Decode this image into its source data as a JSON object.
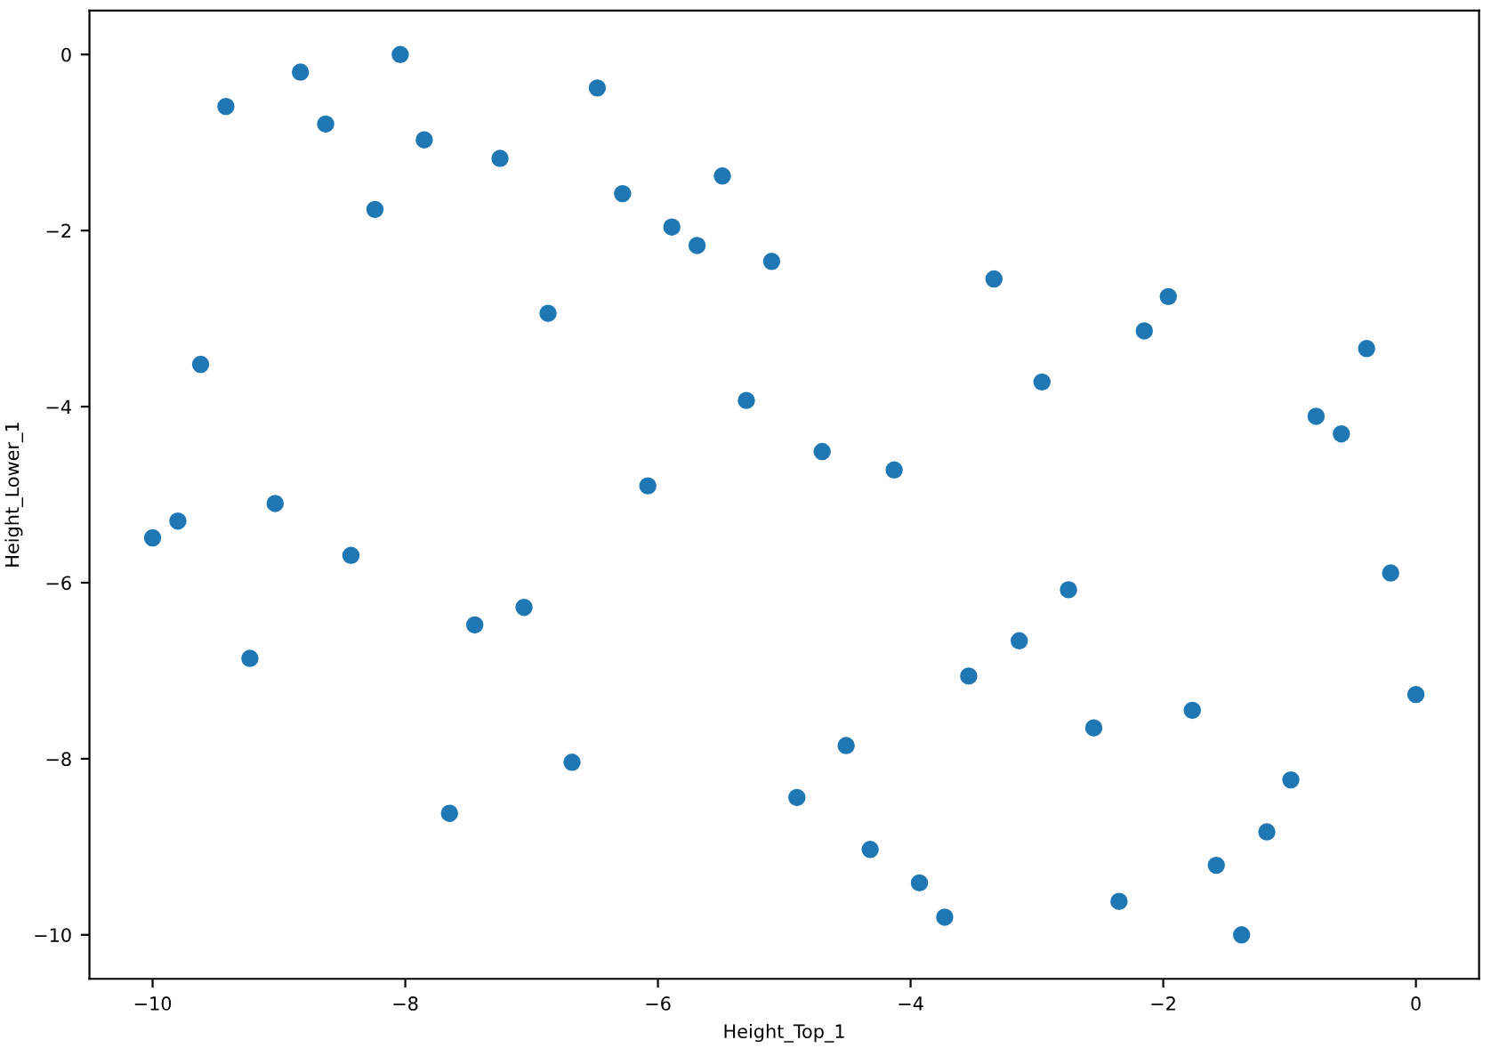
{
  "chart_data": {
    "type": "scatter",
    "xlabel": "Height_Top_1",
    "ylabel": "Height_Lower_1",
    "x": [
      -10,
      -9.8,
      -9.62,
      -9.42,
      -9.23,
      -9.03,
      -8.83,
      -8.63,
      -8.43,
      -8.24,
      -8.04,
      -7.85,
      -7.65,
      -7.45,
      -7.25,
      -7.06,
      -6.87,
      -6.68,
      -6.48,
      -6.28,
      -6.08,
      -5.89,
      -5.69,
      -5.49,
      -5.3,
      -5.1,
      -4.9,
      -4.7,
      -4.51,
      -4.32,
      -4.13,
      -3.93,
      -3.73,
      -3.54,
      -3.34,
      -3.14,
      -2.96,
      -2.75,
      -2.55,
      -2.35,
      -2.15,
      -1.96,
      -1.77,
      -1.58,
      -1.38,
      -1.18,
      -0.99,
      -0.79,
      -0.59,
      -0.39,
      -0.2,
      0
    ],
    "series": [
      {
        "color": "#1f77b4",
        "values": [
          -5.49,
          -5.3,
          -3.52,
          -0.59,
          -6.86,
          -5.1,
          -0.2,
          -0.79,
          -5.69,
          -1.76,
          0,
          -0.97,
          -8.62,
          -6.48,
          -1.18,
          -6.28,
          -2.94,
          -8.04,
          -0.38,
          -1.58,
          -4.9,
          -1.96,
          -2.17,
          -1.38,
          -3.93,
          -2.35,
          -8.44,
          -4.51,
          -7.85,
          -9.03,
          -4.72,
          -9.41,
          -9.8,
          -7.06,
          -2.55,
          -6.66,
          -3.72,
          -6.08,
          -7.65,
          -9.62,
          -3.14,
          -2.75,
          -7.45,
          -9.21,
          -10,
          -8.83,
          -8.24,
          -4.11,
          -4.31,
          -3.34,
          -5.89,
          -7.27
        ]
      }
    ],
    "marker": "circle",
    "grid": false,
    "xlim": [
      -10.5,
      0.5
    ],
    "ylim": [
      -10.5,
      0.5
    ],
    "xticks": [
      {
        "value": -10,
        "label": "−10"
      },
      {
        "value": -8,
        "label": "−8"
      },
      {
        "value": -6,
        "label": "−6"
      },
      {
        "value": -4,
        "label": "−4"
      },
      {
        "value": -2,
        "label": "−2"
      },
      0
    ],
    "yticks": [
      {
        "value": -10,
        "label": "−10"
      },
      {
        "value": -8,
        "label": "−8"
      },
      {
        "value": -6,
        "label": "−6"
      },
      {
        "value": -4,
        "label": "−4"
      },
      {
        "value": -2,
        "label": "−2"
      },
      0
    ]
  }
}
